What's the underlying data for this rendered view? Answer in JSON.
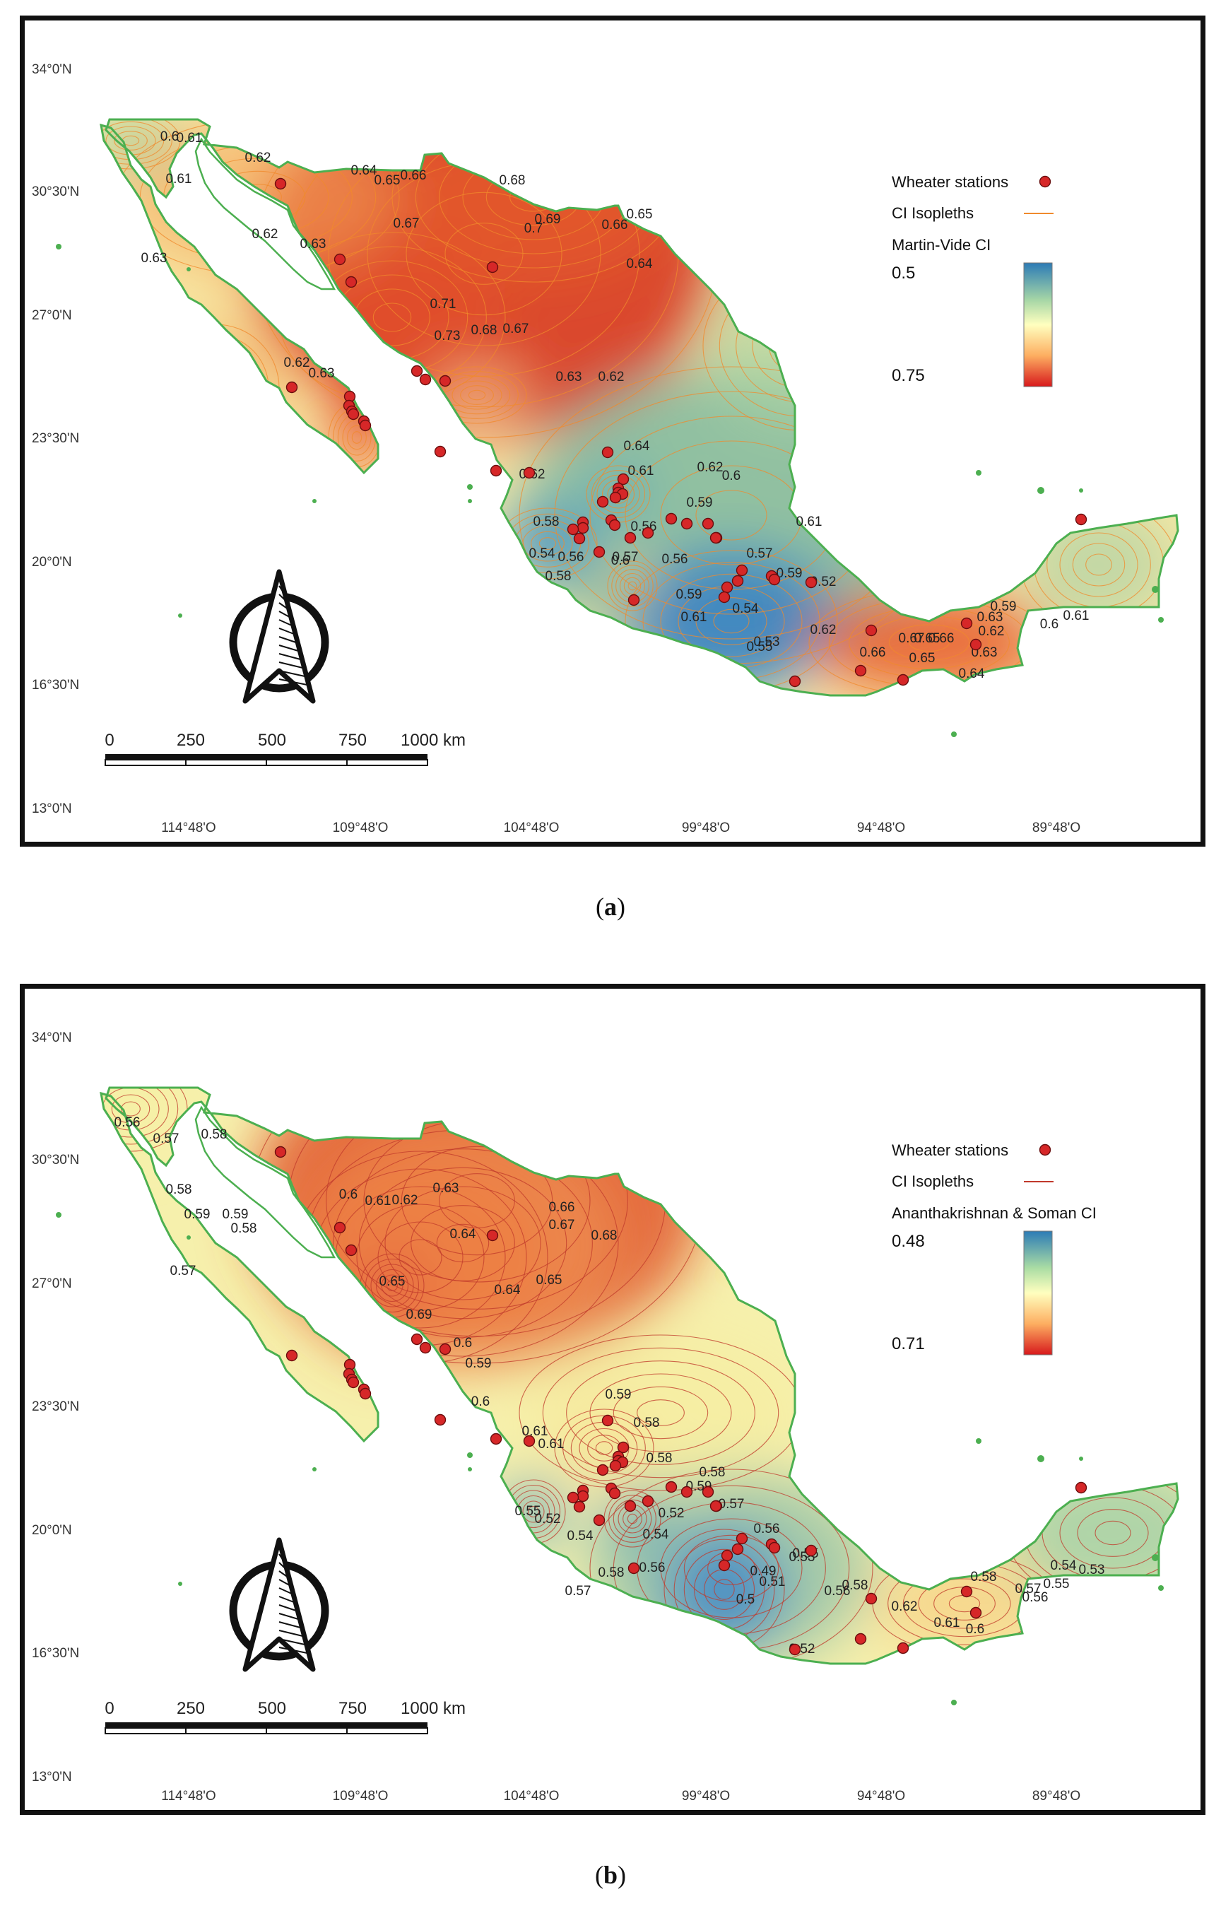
{
  "panels": [
    {
      "id": "a",
      "caption_letter": "a",
      "legend": {
        "stations_label": "Wheater stations",
        "isopleths_label": "CI Isopleths",
        "index_title": "Martin-Vide CI",
        "scale_min": "0.5",
        "scale_max": "0.75",
        "isopleth_color": "#f08a2c"
      },
      "lat_labels": [
        "34°0'N",
        "30°30'N",
        "27°0'N",
        "23°30'N",
        "20°0'N",
        "16°30'N",
        "13°0'N"
      ],
      "lon_labels": [
        "114°48'O",
        "109°48'O",
        "104°48'O",
        "99°48'O",
        "94°48'O",
        "89°48'O"
      ],
      "scalebar": [
        "0",
        "250",
        "500",
        "750",
        "1000 km"
      ],
      "isopleth_labels": [
        "0.6",
        "0.61",
        "0.61",
        "0.62",
        "0.62",
        "0.63",
        "0.63",
        "0.64",
        "0.65",
        "0.66",
        "0.67",
        "0.68",
        "0.7",
        "0.69",
        "0.66",
        "0.65",
        "0.64",
        "0.71",
        "0.73",
        "0.68",
        "0.67",
        "0.63",
        "0.62",
        "0.63",
        "0.62",
        "0.62",
        "0.64",
        "0.61",
        "0.62",
        "0.6",
        "0.59",
        "0.61",
        "0.58",
        "0.54",
        "0.56",
        "0.58",
        "0.57",
        "0.56",
        "0.6",
        "0.59",
        "0.61",
        "0.56",
        "0.57",
        "0.59",
        "0.52",
        "0.54",
        "0.53",
        "0.55",
        "0.62",
        "0.66",
        "0.67",
        "0.65",
        "0.66",
        "0.65",
        "0.64",
        "0.63",
        "0.62",
        "0.63",
        "0.61",
        "0.6",
        "0.59"
      ]
    },
    {
      "id": "b",
      "caption_letter": "b",
      "legend": {
        "stations_label": "Wheater stations",
        "isopleths_label": "CI Isopleths",
        "index_title": "Ananthakrishnan & Soman CI",
        "scale_min": "0.48",
        "scale_max": "0.71",
        "isopleth_color": "#c0392b"
      },
      "lat_labels": [
        "34°0'N",
        "30°30'N",
        "27°0'N",
        "23°30'N",
        "20°0'N",
        "16°30'N",
        "13°0'N"
      ],
      "lon_labels": [
        "114°48'O",
        "109°48'O",
        "104°48'O",
        "99°48'O",
        "94°48'O",
        "89°48'O"
      ],
      "scalebar": [
        "0",
        "250",
        "500",
        "750",
        "1000 km"
      ],
      "isopleth_labels": [
        "0.56",
        "0.57",
        "0.58",
        "0.58",
        "0.59",
        "0.59",
        "0.58",
        "0.57",
        "0.6",
        "0.61",
        "0.62",
        "0.63",
        "0.64",
        "0.66",
        "0.67",
        "0.65",
        "0.68",
        "0.65",
        "0.64",
        "0.69",
        "0.6",
        "0.59",
        "0.6",
        "0.59",
        "0.58",
        "0.61",
        "0.61",
        "0.58",
        "0.59",
        "0.58",
        "0.57",
        "0.56",
        "0.55",
        "0.52",
        "0.54",
        "0.55",
        "0.57",
        "0.58",
        "0.56",
        "0.52",
        "0.54",
        "0.49",
        "0.5",
        "0.51",
        "0.53",
        "0.52",
        "0.56",
        "0.58",
        "0.62",
        "0.61",
        "0.6",
        "0.58",
        "0.57",
        "0.56",
        "0.55",
        "0.54",
        "0.53"
      ]
    }
  ]
}
